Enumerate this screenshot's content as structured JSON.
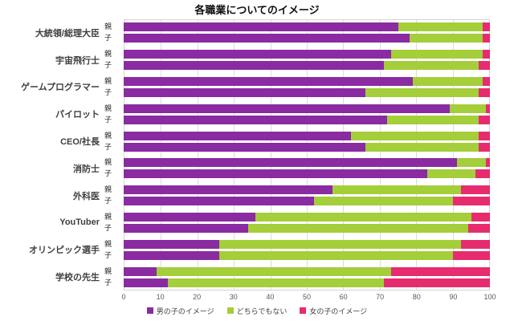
{
  "chart_data": {
    "type": "bar",
    "orientation": "horizontal",
    "stacked": true,
    "title": "各職業についてのイメージ",
    "xlim": [
      0,
      100
    ],
    "x_ticks": [
      0,
      10,
      20,
      30,
      40,
      50,
      60,
      70,
      80,
      90,
      100
    ],
    "grid": true,
    "legend_position": "bottom",
    "series": [
      {
        "name": "男の子のイメージ",
        "color": "#8A2BA2"
      },
      {
        "name": "どちらでもない",
        "color": "#A4CE3A"
      },
      {
        "name": "女の子のイメージ",
        "color": "#E62C6E"
      }
    ],
    "rows": [
      {
        "category": "大統領/総理大臣",
        "bars": [
          {
            "label": "親",
            "values": [
              75,
              23,
              2
            ]
          },
          {
            "label": "子",
            "values": [
              78,
              20,
              2
            ]
          }
        ]
      },
      {
        "category": "宇宙飛行士",
        "bars": [
          {
            "label": "親",
            "values": [
              73,
              25,
              2
            ]
          },
          {
            "label": "子",
            "values": [
              71,
              26,
              3
            ]
          }
        ]
      },
      {
        "category": "ゲームプログラマー",
        "bars": [
          {
            "label": "親",
            "values": [
              79,
              19,
              2
            ]
          },
          {
            "label": "子",
            "values": [
              66,
              31,
              3
            ]
          }
        ]
      },
      {
        "category": "パイロット",
        "bars": [
          {
            "label": "親",
            "values": [
              89,
              10,
              1
            ]
          },
          {
            "label": "子",
            "values": [
              72,
              25,
              3
            ]
          }
        ]
      },
      {
        "category": "CEO/社長",
        "bars": [
          {
            "label": "親",
            "values": [
              62,
              35,
              3
            ]
          },
          {
            "label": "子",
            "values": [
              66,
              31,
              3
            ]
          }
        ]
      },
      {
        "category": "消防士",
        "bars": [
          {
            "label": "親",
            "values": [
              91,
              8,
              1
            ]
          },
          {
            "label": "子",
            "values": [
              83,
              13,
              4
            ]
          }
        ]
      },
      {
        "category": "外科医",
        "bars": [
          {
            "label": "親",
            "values": [
              57,
              35,
              8
            ]
          },
          {
            "label": "子",
            "values": [
              52,
              38,
              10
            ]
          }
        ]
      },
      {
        "category": "YouTuber",
        "bars": [
          {
            "label": "親",
            "values": [
              36,
              59,
              5
            ]
          },
          {
            "label": "子",
            "values": [
              34,
              60,
              6
            ]
          }
        ]
      },
      {
        "category": "オリンピック選手",
        "bars": [
          {
            "label": "親",
            "values": [
              26,
              66,
              8
            ]
          },
          {
            "label": "子",
            "values": [
              26,
              64,
              10
            ]
          }
        ]
      },
      {
        "category": "学校の先生",
        "bars": [
          {
            "label": "親",
            "values": [
              9,
              64,
              27
            ]
          },
          {
            "label": "子",
            "values": [
              12,
              59,
              29
            ]
          }
        ]
      }
    ]
  }
}
